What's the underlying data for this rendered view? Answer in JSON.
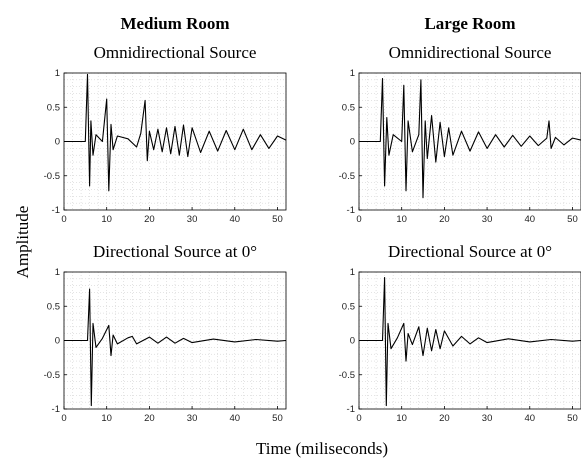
{
  "figure": {
    "ylabel": "Amplitude",
    "xlabel": "Time (miliseconds)",
    "columns": [
      "Medium Room",
      "Large Room"
    ]
  },
  "chart_data": [
    {
      "type": "line",
      "room": "Medium Room",
      "title": "Omnidirectional Source",
      "xlim": [
        0,
        52
      ],
      "ylim": [
        -1,
        1
      ],
      "xticks": [
        "0",
        "10",
        "20",
        "30",
        "40",
        "50"
      ],
      "yticks": [
        "1",
        "0.5",
        "0",
        "-0.5",
        "-1"
      ],
      "grid": true,
      "series": [
        {
          "x": [
            0,
            5,
            5.5,
            6,
            6.3,
            6.8,
            7.5,
            9,
            10,
            10.5,
            11,
            11.5,
            12.5,
            15,
            17,
            18,
            19,
            19.5,
            20,
            21,
            22,
            23,
            24,
            25,
            26,
            27,
            28,
            29,
            30,
            32,
            34,
            36,
            38,
            40,
            42,
            44,
            46,
            48,
            50,
            52
          ],
          "y": [
            0,
            0,
            0.98,
            -0.65,
            0.3,
            -0.2,
            0.1,
            0,
            0.62,
            -0.72,
            0.25,
            -0.12,
            0.08,
            0.04,
            -0.08,
            0.12,
            0.6,
            -0.28,
            0.15,
            -0.12,
            0.18,
            -0.15,
            0.2,
            -0.18,
            0.22,
            -0.2,
            0.24,
            -0.22,
            0.2,
            -0.16,
            0.15,
            -0.14,
            0.16,
            -0.12,
            0.18,
            -0.12,
            0.1,
            -0.1,
            0.08,
            0.02
          ]
        }
      ]
    },
    {
      "type": "line",
      "room": "Large Room",
      "title": "Omnidirectional Source",
      "xlim": [
        0,
        52
      ],
      "ylim": [
        -1,
        1
      ],
      "xticks": [
        "0",
        "10",
        "20",
        "30",
        "40",
        "50"
      ],
      "yticks": [
        "1",
        "0.5",
        "0",
        "-0.5",
        "-1"
      ],
      "grid": true,
      "series": [
        {
          "x": [
            0,
            5,
            5.5,
            6,
            6.5,
            7,
            8,
            10,
            10.5,
            11,
            11.5,
            12.5,
            14,
            14.5,
            15,
            15.5,
            16,
            17,
            18,
            19,
            20,
            21,
            22,
            24,
            26,
            28,
            30,
            32,
            34,
            36,
            38,
            40,
            42,
            44,
            44.5,
            45,
            46,
            48,
            50,
            52
          ],
          "y": [
            0,
            0,
            0.92,
            -0.65,
            0.35,
            -0.2,
            0.1,
            0,
            0.82,
            -0.72,
            0.3,
            -0.15,
            0.1,
            0.9,
            -0.82,
            0.3,
            -0.25,
            0.38,
            -0.3,
            0.28,
            -0.22,
            0.2,
            -0.2,
            0.15,
            -0.14,
            0.14,
            -0.1,
            0.1,
            -0.08,
            0.09,
            -0.07,
            0.08,
            -0.06,
            0.05,
            0.3,
            -0.1,
            0.06,
            -0.05,
            0.05,
            0.02
          ]
        }
      ]
    },
    {
      "type": "line",
      "room": "Medium Room",
      "title": "Directional Source at 0°",
      "xlim": [
        0,
        52
      ],
      "ylim": [
        -1,
        1
      ],
      "xticks": [
        "0",
        "10",
        "20",
        "30",
        "40",
        "50"
      ],
      "yticks": [
        "1",
        "0.5",
        "0",
        "-0.5",
        "-1"
      ],
      "grid": true,
      "series": [
        {
          "x": [
            0,
            5.5,
            6,
            6.4,
            6.8,
            7.5,
            9,
            10.5,
            11,
            11.5,
            12.5,
            15,
            16,
            17,
            20,
            22,
            24,
            26,
            28,
            30,
            35,
            40,
            45,
            50,
            52
          ],
          "y": [
            0,
            0,
            0.75,
            -0.95,
            0.25,
            -0.1,
            0.03,
            0.22,
            -0.22,
            0.08,
            -0.05,
            0.04,
            0.06,
            -0.05,
            0.05,
            -0.04,
            0.05,
            -0.04,
            0.03,
            -0.03,
            0.02,
            -0.02,
            0.015,
            -0.01,
            0
          ]
        }
      ]
    },
    {
      "type": "line",
      "room": "Large Room",
      "title": "Directional Source at 0°",
      "xlim": [
        0,
        52
      ],
      "ylim": [
        -1,
        1
      ],
      "xticks": [
        "0",
        "10",
        "20",
        "30",
        "40",
        "50"
      ],
      "yticks": [
        "1",
        "0.5",
        "0",
        "-0.5",
        "-1"
      ],
      "grid": true,
      "series": [
        {
          "x": [
            0,
            5.5,
            6,
            6.4,
            6.8,
            7.5,
            9,
            10.5,
            11,
            11.5,
            12.5,
            14,
            15,
            16,
            17,
            18,
            19,
            20,
            22,
            24,
            26,
            28,
            30,
            35,
            40,
            45,
            50,
            52
          ],
          "y": [
            0,
            0,
            0.92,
            -0.95,
            0.25,
            -0.12,
            0.04,
            0.25,
            -0.3,
            0.1,
            -0.06,
            0.2,
            -0.22,
            0.18,
            -0.15,
            0.16,
            -0.12,
            0.14,
            -0.08,
            0.06,
            -0.05,
            0.04,
            -0.03,
            0.025,
            -0.02,
            0.015,
            -0.01,
            0
          ]
        }
      ]
    }
  ]
}
